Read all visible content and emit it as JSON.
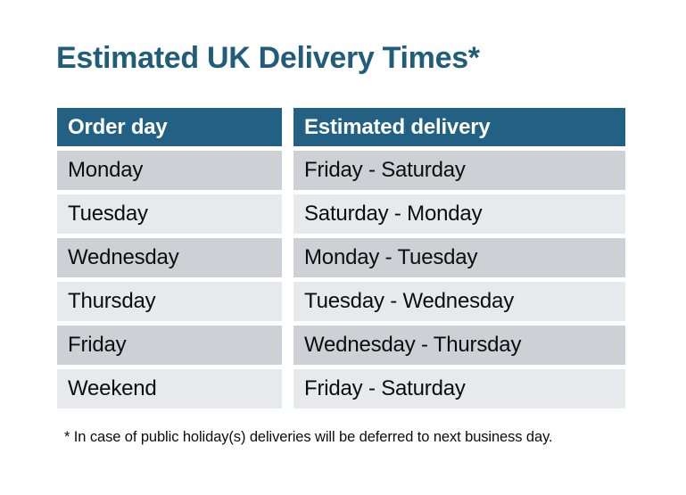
{
  "title": "Estimated UK Delivery Times*",
  "table": {
    "headers": [
      "Order day",
      "Estimated delivery"
    ],
    "rows": [
      [
        "Monday",
        "Friday - Saturday"
      ],
      [
        "Tuesday",
        "Saturday - Monday"
      ],
      [
        "Wednesday",
        "Monday - Tuesday"
      ],
      [
        "Thursday",
        "Tuesday - Wednesday"
      ],
      [
        "Friday",
        "Wednesday - Thursday"
      ],
      [
        "Weekend",
        "Friday - Saturday"
      ]
    ]
  },
  "footnote": "* In case of public holiday(s) deliveries will be deferred to next business day.",
  "colors": {
    "page_bg": "#ffffff",
    "title": "#205d7b",
    "header_bg": "#226183",
    "header_text": "#ffffff",
    "row_dark": "#cdd0d5",
    "row_light": "#e7e9ec",
    "body_text": "#0d0d0d"
  }
}
